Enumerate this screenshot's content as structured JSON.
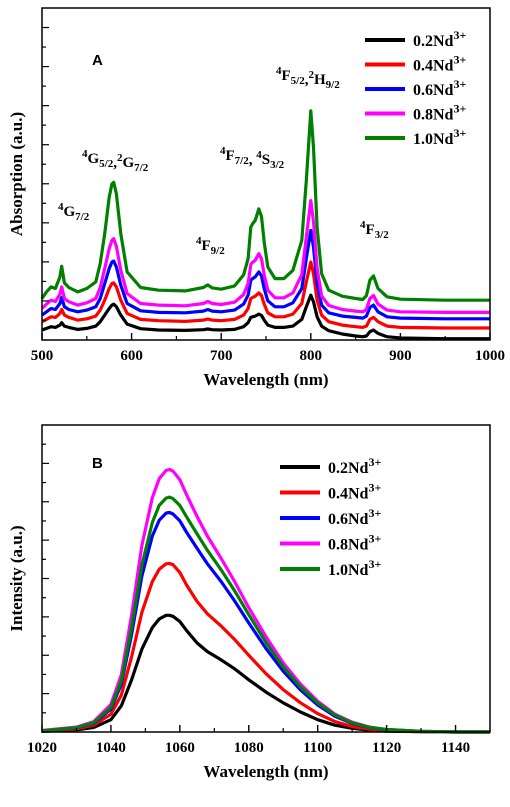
{
  "chart_data": [
    {
      "panel": "A",
      "type": "line",
      "xlabel": "Wavelength (nm)",
      "ylabel": "Absorption (a.u.)",
      "xlim": [
        500,
        1000
      ],
      "ylim": [
        0,
        1
      ],
      "xticks": [
        500,
        600,
        700,
        800,
        900,
        1000
      ],
      "yticks_labeled": false,
      "legend_position": "top-right",
      "annotations": [
        {
          "text": "<tspan>⁴G</tspan><tspan baseline-shift='sub' font-size='11'>7/2</tspan>",
          "plain": "4G7/2",
          "x": 509,
          "y": 0.36
        },
        {
          "text": "<tspan>⁴G</tspan><tspan baseline-shift='sub' font-size='11'>5/2</tspan><tspan>,²G</tspan><tspan baseline-shift='sub' font-size='11'>7/2</tspan>",
          "plain": "4G5/2,2G7/2",
          "x": 537,
          "y": 0.56
        },
        {
          "text": "<tspan>⁴F</tspan><tspan baseline-shift='sub' font-size='11'>9/2</tspan>",
          "plain": "4F9/2",
          "x": 670,
          "y": 0.22
        },
        {
          "text": "<tspan>⁴F</tspan><tspan baseline-shift='sub' font-size='11'>7/2</tspan><tspan>, ⁴S</tspan><tspan baseline-shift='sub' font-size='11'>3/2</tspan>",
          "plain": "4F7/2, 4S3/2",
          "x": 727,
          "y": 0.53
        },
        {
          "text": "<tspan>⁴F</tspan><tspan baseline-shift='sub' font-size='11'>5/2</tspan><tspan>,²H</tspan><tspan baseline-shift='sub' font-size='11'>9/2</tspan>",
          "plain": "4F5/2,2H9/2",
          "x": 773,
          "y": 0.77
        },
        {
          "text": "<tspan>⁴F</tspan><tspan baseline-shift='sub' font-size='11'>3/2</tspan>",
          "plain": "4F3/2",
          "x": 857,
          "y": 0.28
        }
      ],
      "x": [
        500,
        505,
        510,
        515,
        520,
        522,
        525,
        530,
        540,
        550,
        560,
        565,
        570,
        575,
        578,
        580,
        583,
        588,
        595,
        610,
        630,
        660,
        680,
        685,
        690,
        700,
        715,
        725,
        730,
        733,
        735,
        738,
        742,
        745,
        748,
        752,
        760,
        770,
        780,
        790,
        795,
        800,
        803,
        807,
        812,
        820,
        835,
        850,
        858,
        862,
        866,
        870,
        875,
        885,
        900,
        950,
        1000
      ],
      "series": [
        {
          "name": "0.2Nd³⁺",
          "color": "#000000",
          "values": [
            0.03,
            0.035,
            0.04,
            0.038,
            0.045,
            0.052,
            0.042,
            0.038,
            0.032,
            0.035,
            0.042,
            0.055,
            0.075,
            0.095,
            0.105,
            0.108,
            0.1,
            0.075,
            0.048,
            0.034,
            0.03,
            0.029,
            0.031,
            0.033,
            0.031,
            0.03,
            0.032,
            0.04,
            0.052,
            0.068,
            0.07,
            0.072,
            0.078,
            0.074,
            0.06,
            0.045,
            0.038,
            0.038,
            0.042,
            0.062,
            0.1,
            0.135,
            0.115,
            0.07,
            0.042,
            0.028,
            0.018,
            0.012,
            0.01,
            0.012,
            0.025,
            0.03,
            0.02,
            0.01,
            0.006,
            0.004,
            0.004
          ]
        },
        {
          "name": "0.4Nd³⁺",
          "color": "#ff0000",
          "values": [
            0.055,
            0.062,
            0.07,
            0.068,
            0.08,
            0.092,
            0.075,
            0.068,
            0.06,
            0.064,
            0.072,
            0.09,
            0.12,
            0.155,
            0.17,
            0.172,
            0.16,
            0.12,
            0.08,
            0.062,
            0.058,
            0.056,
            0.06,
            0.063,
            0.06,
            0.058,
            0.062,
            0.075,
            0.095,
            0.125,
            0.128,
            0.132,
            0.142,
            0.134,
            0.108,
            0.082,
            0.07,
            0.07,
            0.078,
            0.11,
            0.175,
            0.235,
            0.2,
            0.12,
            0.075,
            0.055,
            0.045,
            0.04,
            0.038,
            0.042,
            0.062,
            0.068,
            0.055,
            0.042,
            0.038,
            0.036,
            0.036
          ]
        },
        {
          "name": "0.6Nd³⁺",
          "color": "#0000ff",
          "values": [
            0.075,
            0.085,
            0.095,
            0.092,
            0.11,
            0.128,
            0.1,
            0.092,
            0.085,
            0.09,
            0.1,
            0.125,
            0.17,
            0.215,
            0.235,
            0.238,
            0.22,
            0.165,
            0.11,
            0.088,
            0.083,
            0.082,
            0.087,
            0.092,
            0.087,
            0.085,
            0.09,
            0.108,
            0.135,
            0.18,
            0.185,
            0.19,
            0.205,
            0.193,
            0.155,
            0.118,
            0.1,
            0.1,
            0.112,
            0.155,
            0.245,
            0.33,
            0.28,
            0.17,
            0.105,
            0.082,
            0.072,
            0.068,
            0.066,
            0.072,
            0.098,
            0.105,
            0.085,
            0.07,
            0.066,
            0.064,
            0.064
          ]
        },
        {
          "name": "0.8Nd³⁺",
          "color": "#ff00ff",
          "values": [
            0.095,
            0.108,
            0.12,
            0.116,
            0.138,
            0.16,
            0.125,
            0.115,
            0.105,
            0.112,
            0.125,
            0.158,
            0.215,
            0.275,
            0.3,
            0.305,
            0.282,
            0.21,
            0.14,
            0.11,
            0.105,
            0.103,
            0.11,
            0.116,
            0.11,
            0.107,
            0.114,
            0.137,
            0.17,
            0.228,
            0.234,
            0.24,
            0.26,
            0.245,
            0.196,
            0.15,
            0.127,
            0.127,
            0.142,
            0.197,
            0.31,
            0.42,
            0.356,
            0.216,
            0.133,
            0.104,
            0.092,
            0.087,
            0.085,
            0.092,
            0.125,
            0.134,
            0.108,
            0.09,
            0.085,
            0.083,
            0.083
          ]
        },
        {
          "name": "1.0Nd³⁺",
          "color": "#008000",
          "values": [
            0.125,
            0.145,
            0.16,
            0.155,
            0.19,
            0.222,
            0.172,
            0.158,
            0.145,
            0.155,
            0.175,
            0.23,
            0.32,
            0.43,
            0.47,
            0.475,
            0.44,
            0.32,
            0.205,
            0.158,
            0.15,
            0.148,
            0.158,
            0.166,
            0.157,
            0.153,
            0.163,
            0.196,
            0.245,
            0.34,
            0.35,
            0.36,
            0.395,
            0.372,
            0.295,
            0.22,
            0.185,
            0.185,
            0.21,
            0.3,
            0.48,
            0.69,
            0.58,
            0.34,
            0.2,
            0.15,
            0.132,
            0.125,
            0.122,
            0.133,
            0.18,
            0.193,
            0.155,
            0.13,
            0.123,
            0.12,
            0.12
          ]
        }
      ]
    },
    {
      "panel": "B",
      "type": "line",
      "xlabel": "Wavelength (nm)",
      "ylabel": "Intensity (a.u.)",
      "xlim": [
        1020,
        1150
      ],
      "ylim": [
        0,
        1
      ],
      "xticks": [
        1020,
        1040,
        1060,
        1080,
        1100,
        1120,
        1140
      ],
      "yticks_labeled": false,
      "legend_position": "top-right",
      "x": [
        1020,
        1030,
        1035,
        1040,
        1043,
        1046,
        1049,
        1052,
        1054,
        1056,
        1057,
        1058,
        1060,
        1062,
        1065,
        1068,
        1072,
        1076,
        1080,
        1085,
        1090,
        1095,
        1100,
        1105,
        1110,
        1115,
        1120,
        1130,
        1140,
        1150
      ],
      "series": [
        {
          "name": "0.2Nd³⁺",
          "color": "#000000",
          "values": [
            0.002,
            0.007,
            0.015,
            0.04,
            0.085,
            0.17,
            0.27,
            0.34,
            0.368,
            0.38,
            0.38,
            0.377,
            0.36,
            0.33,
            0.29,
            0.262,
            0.235,
            0.205,
            0.17,
            0.13,
            0.095,
            0.065,
            0.04,
            0.022,
            0.012,
            0.006,
            0.003,
            0.001,
            0.0,
            0.0
          ]
        },
        {
          "name": "0.4Nd³⁺",
          "color": "#ff0000",
          "values": [
            0.003,
            0.01,
            0.022,
            0.058,
            0.12,
            0.245,
            0.39,
            0.49,
            0.53,
            0.548,
            0.549,
            0.545,
            0.52,
            0.478,
            0.425,
            0.385,
            0.345,
            0.3,
            0.25,
            0.19,
            0.138,
            0.095,
            0.06,
            0.034,
            0.018,
            0.009,
            0.004,
            0.001,
            0.0,
            0.0
          ]
        },
        {
          "name": "0.6Nd³⁺",
          "color": "#0000ff",
          "values": [
            0.004,
            0.013,
            0.028,
            0.075,
            0.155,
            0.318,
            0.508,
            0.638,
            0.69,
            0.713,
            0.715,
            0.71,
            0.688,
            0.65,
            0.598,
            0.548,
            0.49,
            0.425,
            0.355,
            0.272,
            0.198,
            0.137,
            0.088,
            0.051,
            0.028,
            0.014,
            0.007,
            0.002,
            0.0,
            0.0
          ]
        },
        {
          "name": "0.8Nd³⁺",
          "color": "#ff00ff",
          "values": [
            0.005,
            0.016,
            0.034,
            0.09,
            0.186,
            0.38,
            0.608,
            0.763,
            0.825,
            0.852,
            0.855,
            0.85,
            0.822,
            0.772,
            0.702,
            0.638,
            0.565,
            0.488,
            0.405,
            0.31,
            0.225,
            0.156,
            0.1,
            0.058,
            0.032,
            0.016,
            0.008,
            0.002,
            0.0,
            0.0
          ]
        },
        {
          "name": "1.0Nd³⁺",
          "color": "#008000",
          "values": [
            0.004,
            0.014,
            0.03,
            0.08,
            0.166,
            0.34,
            0.543,
            0.682,
            0.738,
            0.762,
            0.765,
            0.76,
            0.738,
            0.7,
            0.645,
            0.592,
            0.528,
            0.458,
            0.382,
            0.292,
            0.212,
            0.147,
            0.094,
            0.055,
            0.03,
            0.015,
            0.008,
            0.002,
            0.0,
            0.0
          ]
        }
      ]
    }
  ]
}
